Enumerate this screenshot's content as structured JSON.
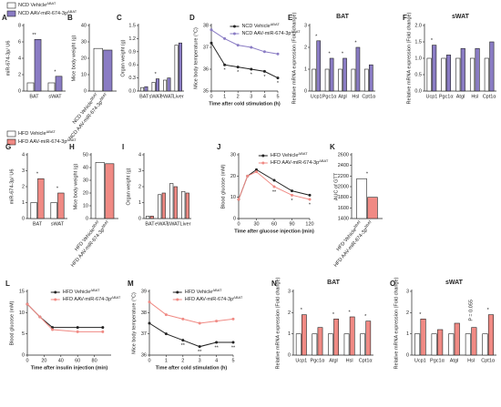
{
  "legends": [
    {
      "items": [
        {
          "name": "NCD Vehicle",
          "sup": "ΔBAT",
          "color": "#ffffff"
        },
        {
          "name": "NCD AAV-miR-674-3p",
          "sup": "ΔBAT",
          "color": "#8a7cc4"
        }
      ]
    },
    {
      "items": [
        {
          "name": "HFD Vehicle",
          "sup": "ΔBAT",
          "color": "#ffffff"
        },
        {
          "name": "HFD AAV-miR-674-3p",
          "sup": "ΔBAT",
          "color": "#f08a84"
        }
      ]
    }
  ],
  "chart_data": [
    {
      "type": "bar",
      "panel": "A",
      "ylabel": "miR-674-3p/ U6",
      "categories": [
        "BAT",
        "sWAT"
      ],
      "series": [
        {
          "name": "NCD Vehicle",
          "color": "#ffffff",
          "values": [
            1,
            1
          ]
        },
        {
          "name": "NCD AAV-miR-674-3p",
          "color": "#8a7cc4",
          "values": [
            6.3,
            1.8
          ]
        }
      ],
      "ylim": [
        0,
        8
      ],
      "yticks": [
        0,
        2,
        4,
        6,
        8
      ],
      "significance": [
        "**",
        "*"
      ]
    },
    {
      "type": "bar",
      "panel": "B",
      "ylabel": "Mice body weight (g)",
      "categories": [
        null
      ],
      "series": [
        {
          "name": "NCD Vehicle",
          "sup": "ΔBAT",
          "color": "#ffffff",
          "values": [
            26
          ]
        },
        {
          "name": "NCD AAV-miR-674-3p",
          "sup": "ΔBAT",
          "color": "#8a7cc4",
          "values": [
            25
          ]
        }
      ],
      "ylim": [
        0,
        40
      ],
      "yticks": [
        0,
        10,
        20,
        30,
        40
      ],
      "series_labels": "rotated"
    },
    {
      "type": "bar",
      "panel": "C",
      "ylabel": "Organ weight (g)",
      "categories": [
        "BAT",
        "sWAT",
        "eWAT",
        "Liver"
      ],
      "series": [
        {
          "name": "NCD Vehicle",
          "color": "#ffffff",
          "values": [
            0.08,
            0.2,
            0.25,
            1.05
          ]
        },
        {
          "name": "NCD AAV-miR-674-3p",
          "color": "#8a7cc4",
          "values": [
            0.1,
            0.28,
            0.3,
            1.1
          ]
        }
      ],
      "ylim": [
        0,
        1.5
      ],
      "yticks": [
        {
          "value": 0,
          "label": "0.0"
        },
        0.3,
        0.6,
        0.9,
        1.2,
        1.5
      ],
      "significance": [
        null,
        "*",
        null,
        null
      ]
    },
    {
      "type": "line",
      "panel": "D",
      "ylabel": "Mice body temperature (°C)",
      "xlabel": "Time after cold stimulation (h)",
      "x": [
        0,
        1,
        2,
        3,
        4,
        5
      ],
      "xlim": [
        0,
        5
      ],
      "xticks": [
        0,
        1,
        2,
        3,
        4,
        5
      ],
      "series": [
        {
          "name": "NCD Vehicle",
          "sup": "ΔBAT",
          "color": "#222222",
          "values": [
            37.2,
            36.2,
            36.1,
            36.0,
            35.9,
            35.6
          ]
        },
        {
          "name": "NCD AAV-miR-674-3p",
          "sup": "ΔBAT",
          "color": "#8a7cc4",
          "values": [
            37.8,
            37.4,
            37.1,
            37.0,
            36.8,
            36.7
          ]
        }
      ],
      "ylim": [
        35,
        38
      ],
      "yticks": [
        35,
        36,
        37,
        38
      ],
      "legend": true,
      "significance": [
        null,
        "*",
        "*",
        "*",
        "*",
        "*"
      ]
    },
    {
      "type": "bar",
      "panel": "E",
      "title": "BAT",
      "ylabel": "Relative mRNA expression (Fold change)",
      "categories": [
        "Ucp1",
        "Pgc1α",
        "Atgl",
        "Hsl",
        "Cpt1α"
      ],
      "series": [
        {
          "name": "NCD Vehicle",
          "color": "#ffffff",
          "values": [
            1,
            1,
            1,
            1,
            1
          ]
        },
        {
          "name": "NCD AAV-miR-674-3p",
          "color": "#8a7cc4",
          "values": [
            2.3,
            1.5,
            1.5,
            2.0,
            1.2
          ]
        }
      ],
      "ylim": [
        0,
        3
      ],
      "yticks": [
        0,
        1,
        2,
        3
      ],
      "significance": [
        "*",
        "*",
        "*",
        "*",
        null
      ]
    },
    {
      "type": "bar",
      "panel": "F",
      "title": "sWAT",
      "ylabel": "Relative mRNA expression (Fold change)",
      "categories": [
        "Ucp1",
        "Pgc1α",
        "Atgl",
        "Hsl",
        "Cpt1α"
      ],
      "series": [
        {
          "name": "NCD Vehicle",
          "color": "#ffffff",
          "values": [
            1,
            1,
            1,
            1,
            1
          ]
        },
        {
          "name": "NCD AAV-miR-674-3p",
          "color": "#8a7cc4",
          "values": [
            1.4,
            1.1,
            1.3,
            1.3,
            1.5
          ]
        }
      ],
      "ylim": [
        0,
        2
      ],
      "yticks": [
        {
          "value": 0,
          "label": "0.0"
        },
        0.5,
        {
          "value": 1,
          "label": "1.0"
        },
        1.5,
        {
          "value": 2,
          "label": "2.0"
        }
      ],
      "significance": [
        "*",
        null,
        null,
        null,
        null
      ]
    },
    {
      "type": "bar",
      "panel": "G",
      "ylabel": "miR-674-3p/ U6",
      "categories": [
        "BAT",
        "sWAT"
      ],
      "series": [
        {
          "name": "HFD Vehicle",
          "color": "#ffffff",
          "values": [
            1,
            1
          ]
        },
        {
          "name": "HFD AAV-miR-674-3p",
          "color": "#f08a84",
          "values": [
            2.5,
            1.6
          ]
        }
      ],
      "ylim": [
        0,
        4
      ],
      "yticks": [
        0,
        1,
        2,
        3,
        4
      ],
      "significance": [
        "*",
        "*"
      ]
    },
    {
      "type": "bar",
      "panel": "H",
      "ylabel": "Mice body weight (g)",
      "categories": [
        null
      ],
      "series": [
        {
          "name": "HFD Vehicle",
          "sup": "ΔBAT",
          "color": "#ffffff",
          "values": [
            44
          ]
        },
        {
          "name": "HFD AAV-miR-674-3p",
          "sup": "ΔBAT",
          "color": "#f08a84",
          "values": [
            43
          ]
        }
      ],
      "ylim": [
        0,
        50
      ],
      "yticks": [
        0,
        10,
        20,
        30,
        40,
        50
      ],
      "series_labels": "rotated"
    },
    {
      "type": "bar",
      "panel": "I",
      "ylabel": "Organ weight (g)",
      "categories": [
        "BAT",
        "eWAT",
        "sWAT",
        "Liver"
      ],
      "series": [
        {
          "name": "HFD Vehicle",
          "color": "#ffffff",
          "values": [
            0.15,
            1.5,
            2.2,
            1.7
          ]
        },
        {
          "name": "HFD AAV-miR-674-3p",
          "color": "#f08a84",
          "values": [
            0.15,
            1.6,
            2.0,
            1.6
          ]
        }
      ],
      "ylim": [
        0,
        4
      ],
      "yticks": [
        0,
        1,
        2,
        3,
        4
      ]
    },
    {
      "type": "line",
      "panel": "J",
      "ylabel": "Blood glucose (mM)",
      "xlabel": "Time after glucose injection (min)",
      "x": [
        0,
        15,
        30,
        60,
        90,
        120
      ],
      "xlim": [
        0,
        120
      ],
      "xticks": [
        0,
        30,
        60,
        90,
        120
      ],
      "series": [
        {
          "name": "HFD Vehicle",
          "sup": "ΔBAT",
          "color": "#222222",
          "values": [
            9,
            20,
            23,
            18,
            13,
            11
          ]
        },
        {
          "name": "HFD AAV-miR-674-3p",
          "sup": "ΔBAT",
          "color": "#f08a84",
          "values": [
            9,
            20,
            22,
            15,
            11,
            9
          ]
        }
      ],
      "ylim": [
        0,
        30
      ],
      "yticks": [
        0,
        10,
        20,
        30
      ],
      "legend": true,
      "significance": [
        null,
        null,
        null,
        "**",
        "*",
        "*"
      ]
    },
    {
      "type": "bar",
      "panel": "K",
      "ylabel": "AUC of GTT",
      "categories": [
        null
      ],
      "series": [
        {
          "name": "HFD Vehicle",
          "sup": "ΔBAT",
          "color": "#ffffff",
          "values": [
            2150
          ]
        },
        {
          "name": "HFD AAV-miR-674-3p",
          "sup": "ΔBAT",
          "color": "#f08a84",
          "values": [
            1800
          ]
        }
      ],
      "ylim": [
        1400,
        2600
      ],
      "yticks": [
        1400,
        1600,
        1800,
        2000,
        2200,
        2400,
        2600
      ],
      "series_labels": "rotated",
      "significance": [
        "*"
      ]
    },
    {
      "type": "line",
      "panel": "L",
      "ylabel": "Blood glucose (mM)",
      "xlabel": "Time after insulin injection (min)",
      "x": [
        0,
        15,
        30,
        60,
        90
      ],
      "xlim": [
        0,
        100
      ],
      "xticks": [
        0,
        20,
        40,
        60,
        80
      ],
      "series": [
        {
          "name": "HFD Vehicle",
          "sup": "ΔBAT",
          "color": "#222222",
          "values": [
            12,
            9,
            6.5,
            6.5,
            6.5
          ]
        },
        {
          "name": "HFD AAV-miR-674-3p",
          "sup": "ΔBAT",
          "color": "#f08a84",
          "values": [
            12,
            9,
            6,
            5.5,
            5.5
          ]
        }
      ],
      "ylim": [
        0,
        15
      ],
      "yticks": [
        0,
        5,
        10,
        15
      ],
      "legend": true
    },
    {
      "type": "line",
      "panel": "M",
      "ylabel": "Mice body temperature (°C)",
      "xlabel": "Time after cold stimulation (h)",
      "x": [
        0,
        1,
        2,
        3,
        4,
        5
      ],
      "xlim": [
        0,
        5
      ],
      "xticks": [
        0,
        1,
        2,
        3,
        4,
        5
      ],
      "series": [
        {
          "name": "HFD Vehicle",
          "sup": "ΔBAT",
          "color": "#222222",
          "values": [
            37.5,
            37.0,
            36.7,
            36.4,
            36.6,
            36.6
          ]
        },
        {
          "name": "HFD AAV-miR-674-3p",
          "sup": "ΔBAT",
          "color": "#f08a84",
          "values": [
            38.5,
            37.9,
            37.7,
            37.5,
            37.6,
            37.7
          ]
        }
      ],
      "ylim": [
        36,
        39
      ],
      "yticks": [
        36,
        37,
        38,
        39
      ],
      "legend": true,
      "significance": [
        null,
        null,
        "**",
        "**",
        "**",
        "**"
      ]
    },
    {
      "type": "bar",
      "panel": "N",
      "title": "BAT",
      "ylabel": "Relative mRNA expression (Fold change)",
      "categories": [
        "Ucp1",
        "Pgc1α",
        "Atgl",
        "Hsl",
        "Cpt1α"
      ],
      "series": [
        {
          "name": "HFD Vehicle",
          "color": "#ffffff",
          "values": [
            1,
            1,
            1,
            1,
            1
          ]
        },
        {
          "name": "HFD AAV-miR-674-3p",
          "color": "#f08a84",
          "values": [
            1.9,
            1.3,
            1.7,
            1.8,
            1.6
          ]
        }
      ],
      "ylim": [
        0,
        3
      ],
      "yticks": [
        0,
        1,
        2,
        3
      ],
      "significance": [
        "*",
        null,
        "*",
        "*",
        "*"
      ]
    },
    {
      "type": "bar",
      "panel": "O",
      "title": "sWAT",
      "ylabel": "Relative mRNA expression (Fold change)",
      "categories": [
        "Ucp1",
        "Pgc1α",
        "Atgl",
        "Hsl",
        "Cpt1α"
      ],
      "series": [
        {
          "name": "HFD Vehicle",
          "color": "#ffffff",
          "values": [
            1,
            1,
            1,
            1,
            1
          ]
        },
        {
          "name": "HFD AAV-miR-674-3p",
          "color": "#f08a84",
          "values": [
            1.7,
            1.2,
            1.5,
            1.3,
            1.9
          ]
        }
      ],
      "ylim": [
        0,
        3
      ],
      "yticks": [
        0,
        1,
        2,
        3
      ],
      "significance": [
        "*",
        null,
        null,
        "P = 0.055",
        "*"
      ]
    }
  ]
}
